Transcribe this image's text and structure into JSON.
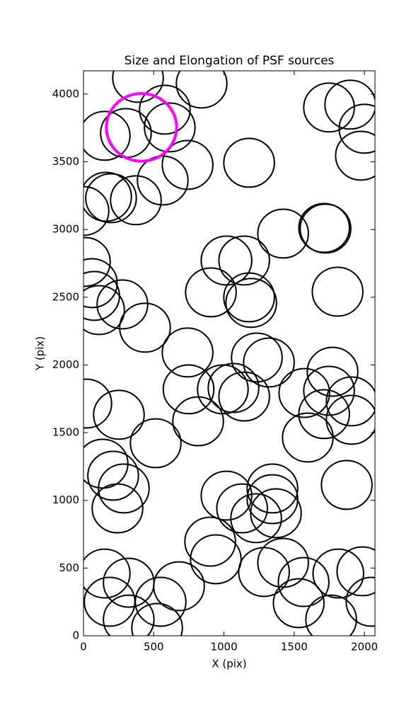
{
  "chart_data": {
    "type": "scatter",
    "title": "Size and Elongation of PSF sources",
    "x_label": "X (pix)",
    "y_label": "Y (pix)",
    "xlim": [
      0,
      2075
    ],
    "ylim": [
      0,
      4172
    ],
    "xticks": [
      0,
      500,
      1000,
      1500,
      2000
    ],
    "yticks": [
      0,
      500,
      1000,
      1500,
      2000,
      2500,
      3000,
      3500,
      4000
    ],
    "series": [
      {
        "color": "#000000",
        "marker_radius": 180,
        "x": [
          388,
          841,
          579,
          614,
          151,
          302,
          741,
          564,
          161,
          196,
          373,
          0,
          1179,
          1748,
          1899,
          2000,
          1975,
          1723,
          1713,
          1421,
          1018,
          1144,
          907,
          1179,
          1194,
          1809,
          10,
          60,
          76,
          111,
          277,
          438,
          741,
          1234,
          1320,
          748,
          1068,
          1144,
          992,
          1572,
          1773,
          1748,
          1909,
          1909,
          1713,
          1597,
          816,
          252,
          20,
          514,
          136,
          211,
          287,
          242,
          1018,
          1129,
          1229,
          1345,
          1345,
          1370,
          1874,
          902,
          942,
          1285,
          1421,
          151,
          322,
          186,
          680,
          549,
          322,
          524,
          1567,
          1532,
          1763,
          1985,
          1814,
          2050
        ],
        "y": [
          4120,
          4078,
          3885,
          3754,
          3692,
          3712,
          3477,
          3362,
          3242,
          3231,
          3216,
          3137,
          3493,
          3901,
          3922,
          3744,
          3545,
          3007,
          3012,
          2970,
          2771,
          2771,
          2536,
          2499,
          2458,
          2541,
          2761,
          2604,
          2510,
          2405,
          2447,
          2275,
          2092,
          2055,
          2018,
          1820,
          1830,
          1767,
          1820,
          1793,
          1950,
          1809,
          1731,
          1595,
          1637,
          1464,
          1584,
          1632,
          1715,
          1422,
          1271,
          1182,
          1088,
          941,
          1035,
          941,
          868,
          1088,
          1009,
          905,
          1114,
          695,
          565,
          471,
          539,
          460,
          392,
          251,
          366,
          251,
          120,
          58,
          397,
          241,
          120,
          476,
          460,
          251
        ]
      },
      {
        "color": "#ff00ff",
        "marker_radius": 250,
        "x": [
          413
        ],
        "y": [
          3754
        ]
      }
    ]
  }
}
